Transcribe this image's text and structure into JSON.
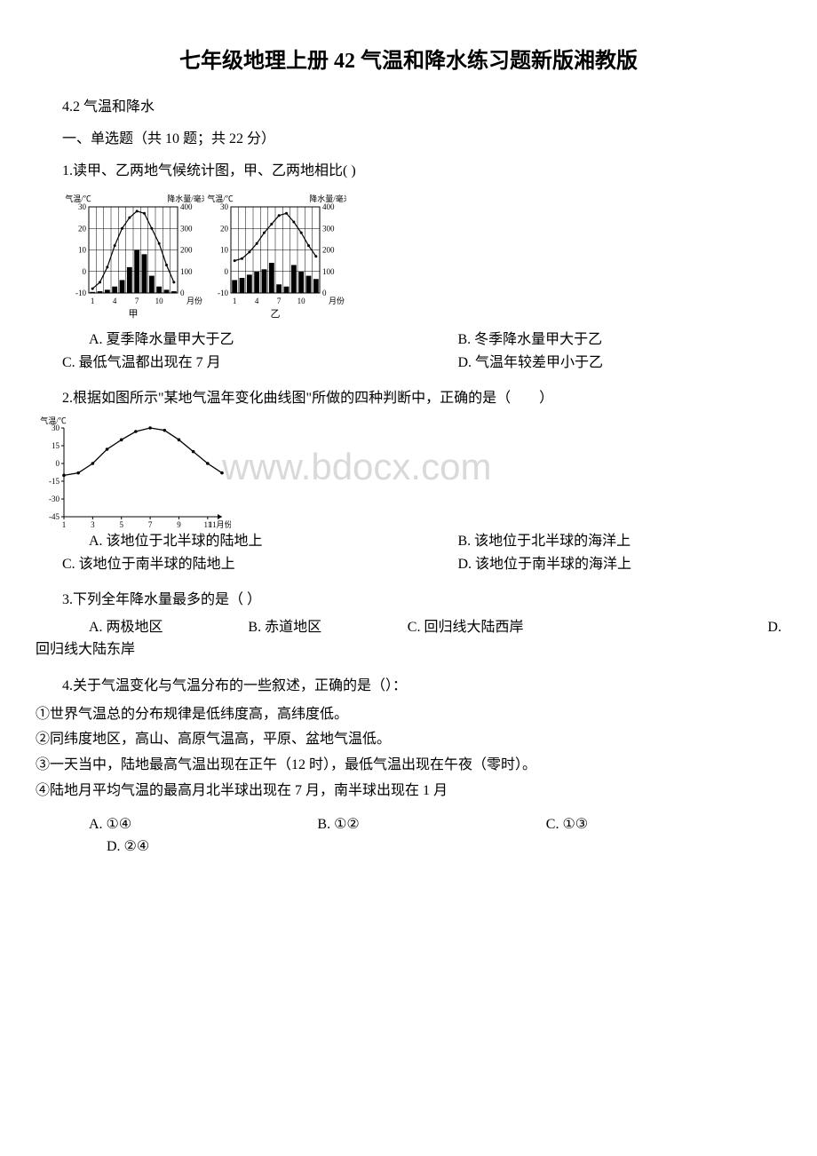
{
  "title": "七年级地理上册 42 气温和降水练习题新版湘教版",
  "subtitle": "4.2 气温和降水",
  "section_heading": "一、单选题（共 10 题；共 22 分）",
  "watermark": "www.bdocx.com",
  "q1": {
    "text": "1.读甲、乙两地气候统计图，甲、乙两地相比(   )",
    "optA": "A. 夏季降水量甲大于乙",
    "optB": "B. 冬季降水量甲大于乙",
    "optC": "C. 最低气温都出现在 7 月",
    "optD": "D. 气温年较差甲小于乙",
    "chart_jia": {
      "type": "climograph",
      "label_bottom": "甲",
      "temp_axis_label": "气温/℃",
      "precip_axis_label": "降水量/毫米",
      "x_label": "月份",
      "temp_ticks": [
        -10,
        0,
        10,
        20,
        30
      ],
      "precip_ticks": [
        0,
        100,
        200,
        300,
        400
      ],
      "x_ticks": [
        1,
        4,
        7,
        10
      ],
      "temp_values": [
        -8,
        -5,
        2,
        12,
        20,
        25,
        28,
        27,
        20,
        13,
        3,
        -5
      ],
      "precip_values": [
        5,
        8,
        15,
        30,
        60,
        120,
        200,
        180,
        80,
        30,
        15,
        8
      ],
      "temp_color": "#000000",
      "bar_color": "#000000",
      "grid_color": "#000000",
      "bg_color": "#ffffff"
    },
    "chart_yi": {
      "type": "climograph",
      "label_bottom": "乙",
      "temp_axis_label": "气温/℃",
      "precip_axis_label": "降水量/毫米",
      "x_label": "月份",
      "temp_ticks": [
        -10,
        0,
        10,
        20,
        30
      ],
      "precip_ticks": [
        0,
        100,
        200,
        300,
        400
      ],
      "x_ticks": [
        1,
        4,
        7,
        10
      ],
      "temp_values": [
        5,
        6,
        9,
        13,
        18,
        22,
        26,
        27,
        23,
        18,
        12,
        7
      ],
      "precip_values": [
        60,
        70,
        85,
        100,
        110,
        140,
        40,
        30,
        130,
        100,
        80,
        65
      ],
      "temp_color": "#000000",
      "bar_color": "#000000",
      "grid_color": "#000000",
      "bg_color": "#ffffff"
    }
  },
  "q2": {
    "text": "2.根据如图所示\"某地气温年变化曲线图\"所做的四种判断中，正确的是（　　）",
    "optA": "A. 该地位于北半球的陆地上",
    "optB": "B. 该地位于北半球的海洋上",
    "optC": "C. 该地位于南半球的陆地上",
    "optD": "D. 该地位于南半球的海洋上",
    "chart": {
      "type": "line",
      "y_label": "气温/℃",
      "x_label": "11月份",
      "y_ticks": [
        -45,
        -30,
        -15,
        0,
        15,
        30
      ],
      "x_ticks": [
        1,
        3,
        5,
        7,
        9,
        11
      ],
      "temp_values": [
        -10,
        -8,
        0,
        12,
        20,
        27,
        30,
        28,
        20,
        10,
        0,
        -8
      ],
      "line_color": "#000000",
      "grid_color": "#000000",
      "bg_color": "#ffffff"
    }
  },
  "q3": {
    "text": "3.下列全年降水量最多的是（  ）",
    "optA": "A. 两极地区",
    "optB": "B. 赤道地区",
    "optC": "C. 回归线大陆西岸",
    "optD": "D. 回归线大陆东岸"
  },
  "q4": {
    "text": "4.关于气温变化与气温分布的一些叙述，正确的是（）：",
    "s1": "①世界气温总的分布规律是低纬度高，高纬度低。",
    "s2": "②同纬度地区，高山、高原气温高，平原、盆地气温低。",
    "s3": "③一天当中，陆地最高气温出现在正午（12 时），最低气温出现在午夜（零时）。",
    "s4": "④陆地月平均气温的最高月北半球出现在 7 月，南半球出现在 1 月",
    "optA": "A. ①④",
    "optB": "B. ①②",
    "optC": "C. ①③",
    "optD": "D. ②④"
  }
}
